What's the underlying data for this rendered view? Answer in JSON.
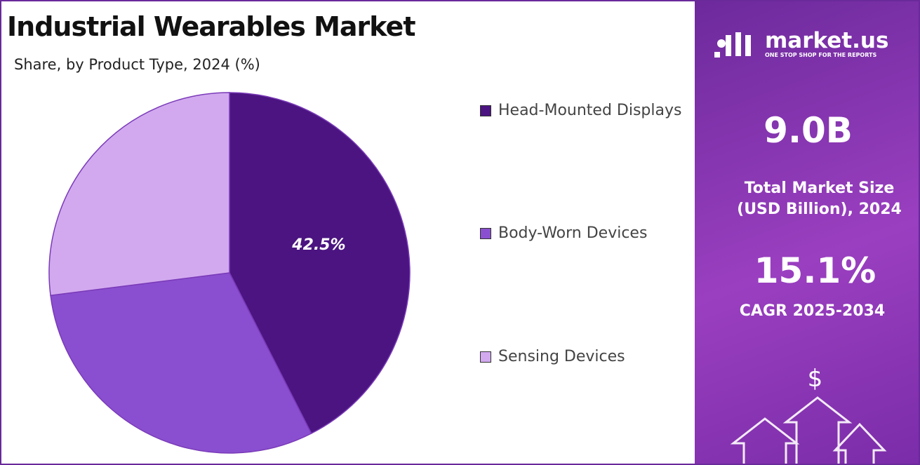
{
  "chart_data": {
    "type": "pie",
    "title": "Industrial Wearables Market",
    "subtitle": "Share, by Product Type, 2024 (%)",
    "categories": [
      "Head-Mounted Displays",
      "Body-Worn Devices",
      "Sensing Devices"
    ],
    "values": [
      42.5,
      30.5,
      27.0
    ],
    "value_labels": [
      "42.5%",
      null,
      null
    ],
    "colors": [
      "#4b1480",
      "#8a4fd0",
      "#d2a9ef"
    ]
  },
  "sidebar": {
    "brand": "market.us",
    "tagline": "ONE STOP SHOP FOR THE REPORTS",
    "market_size": "9.0B",
    "market_size_label": "Total Market Size (USD Billion), 2024",
    "cagr": "15.1%",
    "cagr_label": "CAGR 2025-2034",
    "icon": "$"
  }
}
